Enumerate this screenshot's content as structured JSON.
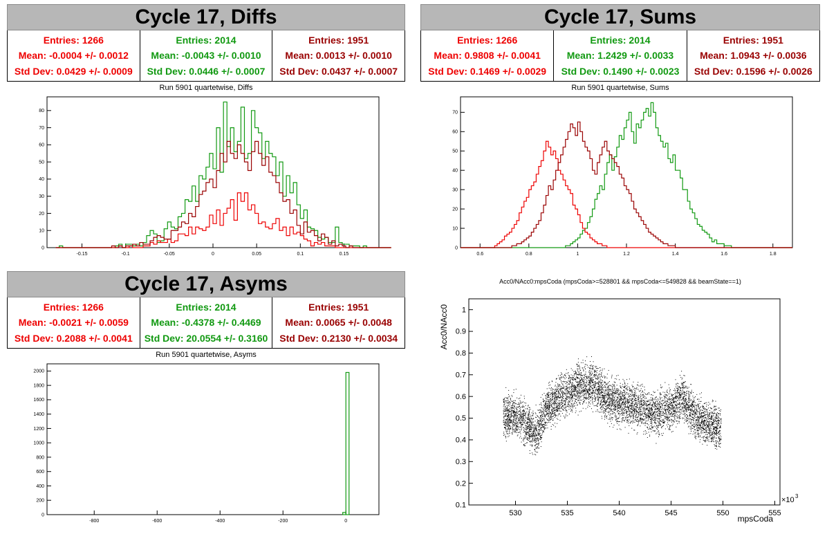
{
  "colors": {
    "red": "#ee0000",
    "green": "#119911",
    "darkred": "#990000"
  },
  "panels": [
    {
      "title": "Cycle 17, Diffs",
      "stats": [
        {
          "entries": "Entries: 1266",
          "mean": "Mean: -0.0004 +/- 0.0012",
          "std": "Std Dev: 0.0429 +/- 0.0009",
          "color": "#ee0000"
        },
        {
          "entries": "Entries: 2014",
          "mean": "Mean: -0.0043 +/- 0.0010",
          "std": "Std Dev: 0.0446 +/- 0.0007",
          "color": "#119911"
        },
        {
          "entries": "Entries: 1951",
          "mean": "Mean: 0.0013 +/- 0.0010",
          "std": "Std Dev: 0.0437 +/- 0.0007",
          "color": "#990000"
        }
      ],
      "subtitle": "Run 5901 quartetwise, Diffs"
    },
    {
      "title": "Cycle 17, Sums",
      "stats": [
        {
          "entries": "Entries: 1266",
          "mean": "Mean: 0.9808 +/- 0.0041",
          "std": "Std Dev: 0.1469 +/- 0.0029",
          "color": "#ee0000"
        },
        {
          "entries": "Entries: 2014",
          "mean": "Mean: 1.2429 +/- 0.0033",
          "std": "Std Dev: 0.1490 +/- 0.0023",
          "color": "#119911"
        },
        {
          "entries": "Entries: 1951",
          "mean": "Mean: 1.0943 +/- 0.0036",
          "std": "Std Dev: 0.1596 +/- 0.0026",
          "color": "#990000"
        }
      ],
      "subtitle": "Run 5901 quartetwise, Sums"
    },
    {
      "title": "Cycle 17, Asyms",
      "stats": [
        {
          "entries": "Entries: 1266",
          "mean": "Mean: -0.0021 +/- 0.0059",
          "std": "Std Dev: 0.2088 +/- 0.0041",
          "color": "#ee0000"
        },
        {
          "entries": "Entries: 2014",
          "mean": "Mean: -0.4378 +/- 0.4469",
          "std": "Std Dev: 20.0554 +/- 0.3160",
          "color": "#119911"
        },
        {
          "entries": "Entries: 1951",
          "mean": "Mean: 0.0065 +/- 0.0048",
          "std": "Std Dev: 0.2130 +/- 0.0034",
          "color": "#990000"
        }
      ],
      "subtitle": "Run 5901 quartetwise, Asyms"
    }
  ],
  "chart_data": [
    {
      "type": "histogram",
      "title": "Run 5901 quartetwise, Diffs",
      "xlim": [
        -0.19,
        0.19
      ],
      "ylim": [
        0,
        88
      ],
      "xticks": [
        "-0.15",
        "-0.1",
        "-0.05",
        "0",
        "0.05",
        "0.1",
        "0.15"
      ],
      "xtick_values": [
        -0.15,
        -0.1,
        -0.05,
        0,
        0.05,
        0.1,
        0.15
      ],
      "yticks": [
        "0",
        "10",
        "20",
        "30",
        "40",
        "50",
        "60",
        "70",
        "80"
      ],
      "ytick_values": [
        0,
        10,
        20,
        30,
        40,
        50,
        60,
        70,
        80
      ],
      "x_start": -0.18,
      "bin_width": 0.004,
      "series": [
        {
          "color": "#119911",
          "counts": [
            0,
            1,
            0,
            0,
            0,
            0,
            0,
            0,
            0,
            0,
            0,
            0,
            0,
            0,
            0,
            0,
            0,
            1,
            2,
            0,
            2,
            2,
            1,
            2,
            1,
            3,
            7,
            10,
            8,
            3,
            4,
            11,
            15,
            12,
            11,
            18,
            20,
            28,
            27,
            36,
            27,
            42,
            40,
            47,
            55,
            46,
            70,
            44,
            85,
            59,
            70,
            56,
            62,
            82,
            52,
            55,
            80,
            70,
            67,
            52,
            62,
            55,
            53,
            42,
            50,
            30,
            42,
            32,
            38,
            25,
            17,
            22,
            12,
            11,
            10,
            6,
            5,
            6,
            3,
            3,
            12,
            3,
            2,
            2,
            1,
            1,
            1,
            0,
            1,
            0,
            0,
            0,
            0,
            0,
            0,
            0
          ]
        },
        {
          "color": "#ee0000",
          "counts": [
            0,
            0,
            0,
            0,
            0,
            0,
            0,
            0,
            0,
            0,
            0,
            0,
            0,
            0,
            0,
            0,
            0,
            0,
            1,
            0,
            0,
            1,
            0,
            0,
            0,
            1,
            1,
            3,
            2,
            4,
            3,
            3,
            5,
            3,
            4,
            8,
            8,
            7,
            12,
            8,
            12,
            11,
            10,
            12,
            19,
            14,
            22,
            13,
            20,
            23,
            28,
            16,
            32,
            27,
            32,
            22,
            25,
            20,
            14,
            15,
            12,
            11,
            14,
            17,
            10,
            12,
            7,
            12,
            8,
            9,
            7,
            5,
            4,
            1,
            3,
            2,
            3,
            1,
            1,
            1,
            0,
            0,
            0,
            0,
            0,
            0,
            0,
            0,
            0,
            0,
            0,
            0,
            0,
            0,
            0,
            0
          ]
        },
        {
          "color": "#990000",
          "counts": [
            0,
            0,
            0,
            0,
            0,
            0,
            0,
            0,
            0,
            0,
            0,
            0,
            0,
            0,
            0,
            0,
            1,
            0,
            1,
            0,
            1,
            1,
            2,
            1,
            3,
            2,
            2,
            4,
            6,
            7,
            6,
            5,
            5,
            10,
            10,
            12,
            15,
            14,
            20,
            18,
            24,
            31,
            33,
            38,
            40,
            35,
            45,
            55,
            50,
            62,
            55,
            52,
            60,
            55,
            50,
            45,
            56,
            62,
            55,
            48,
            53,
            44,
            42,
            38,
            32,
            27,
            28,
            20,
            22,
            13,
            8,
            15,
            9,
            10,
            7,
            4,
            8,
            6,
            2,
            4,
            1,
            2,
            1,
            0,
            1,
            0,
            0,
            0,
            0,
            0,
            0,
            0,
            0,
            0,
            0,
            0
          ]
        }
      ]
    },
    {
      "type": "histogram",
      "title": "Run 5901 quartetwise, Sums",
      "xlim": [
        0.52,
        1.88
      ],
      "ylim": [
        0,
        78
      ],
      "xticks": [
        "0.6",
        "0.8",
        "1",
        "1.2",
        "1.4",
        "1.6",
        "1.8"
      ],
      "xtick_values": [
        0.6,
        0.8,
        1.0,
        1.2,
        1.4,
        1.6,
        1.8
      ],
      "yticks": [
        "0",
        "10",
        "20",
        "30",
        "40",
        "50",
        "60",
        "70"
      ],
      "ytick_values": [
        0,
        10,
        20,
        30,
        40,
        50,
        60,
        70
      ],
      "x_start": 0.52,
      "bin_width": 0.01,
      "series": [
        {
          "color": "#119911",
          "counts": [
            0,
            0,
            0,
            0,
            0,
            0,
            0,
            0,
            0,
            0,
            0,
            0,
            0,
            0,
            0,
            0,
            0,
            0,
            0,
            0,
            0,
            0,
            0,
            0,
            0,
            0,
            0,
            0,
            0,
            0,
            0,
            0,
            0,
            0,
            0,
            0,
            0,
            0,
            0,
            0,
            0,
            0,
            0,
            1,
            1,
            2,
            3,
            4,
            5,
            7,
            9,
            10,
            13,
            16,
            20,
            25,
            28,
            32,
            30,
            38,
            44,
            48,
            40,
            47,
            52,
            58,
            56,
            62,
            66,
            70,
            60,
            54,
            64,
            62,
            66,
            70,
            72,
            68,
            75,
            70,
            62,
            58,
            55,
            52,
            54,
            46,
            44,
            48,
            40,
            40,
            36,
            30,
            30,
            24,
            20,
            18,
            15,
            12,
            11,
            9,
            8,
            7,
            5,
            3,
            4,
            2,
            2,
            2,
            1,
            1,
            1,
            0,
            0,
            0,
            0,
            0,
            0,
            0,
            0,
            0,
            0,
            0,
            0,
            0,
            0,
            0,
            0,
            0,
            0,
            0,
            0,
            0,
            0,
            0,
            0,
            0
          ]
        },
        {
          "color": "#ee0000",
          "counts": [
            0,
            0,
            0,
            0,
            0,
            0,
            0,
            0,
            0,
            0,
            0,
            0,
            0,
            0,
            1,
            2,
            3,
            4,
            6,
            7,
            8,
            10,
            12,
            14,
            18,
            21,
            24,
            26,
            30,
            32,
            34,
            38,
            42,
            45,
            50,
            55,
            52,
            48,
            50,
            46,
            40,
            38,
            35,
            32,
            30,
            28,
            22,
            20,
            17,
            13,
            10,
            8,
            7,
            5,
            4,
            3,
            2,
            2,
            1,
            1,
            0,
            0,
            0,
            0,
            0,
            0,
            0,
            0,
            0,
            0,
            0,
            0,
            0,
            0,
            0,
            0,
            0,
            0,
            0,
            0,
            0,
            0,
            0,
            0,
            0,
            0,
            0,
            0,
            0,
            0,
            0,
            0,
            0,
            0,
            0,
            0,
            0,
            0,
            0,
            0,
            0,
            0,
            0,
            0,
            0,
            0,
            0,
            0,
            0,
            0,
            0,
            0,
            0,
            0,
            0,
            0,
            0,
            0,
            0,
            0,
            0,
            0,
            0,
            0,
            0,
            0,
            0,
            0,
            0,
            0,
            0,
            0,
            0,
            0,
            0,
            0
          ]
        },
        {
          "color": "#990000",
          "counts": [
            0,
            0,
            0,
            0,
            0,
            0,
            0,
            0,
            0,
            0,
            0,
            0,
            0,
            0,
            0,
            0,
            0,
            0,
            0,
            0,
            0,
            1,
            1,
            2,
            2,
            3,
            4,
            5,
            6,
            8,
            10,
            12,
            14,
            18,
            22,
            27,
            32,
            30,
            35,
            40,
            44,
            48,
            52,
            56,
            60,
            64,
            62,
            58,
            65,
            60,
            55,
            52,
            50,
            46,
            40,
            38,
            44,
            48,
            52,
            55,
            50,
            48,
            46,
            44,
            42,
            38,
            36,
            32,
            30,
            28,
            24,
            20,
            18,
            16,
            14,
            12,
            10,
            8,
            7,
            6,
            5,
            4,
            3,
            2,
            2,
            1,
            1,
            1,
            0,
            0,
            0,
            0,
            0,
            0,
            0,
            0,
            0,
            0,
            0,
            0,
            0,
            0,
            0,
            0,
            0,
            0,
            0,
            0,
            0,
            0,
            0,
            0,
            0,
            0,
            0,
            0,
            0,
            0,
            0,
            0,
            0,
            0,
            0,
            0,
            0,
            0,
            0,
            0,
            0,
            0,
            0,
            0,
            0,
            0,
            0,
            0
          ]
        }
      ]
    },
    {
      "type": "histogram",
      "title": "Run 5901 quartetwise, Asyms",
      "xlim": [
        -950,
        105
      ],
      "ylim": [
        0,
        2100
      ],
      "xticks": [
        "-800",
        "-600",
        "-400",
        "-200",
        "0"
      ],
      "xtick_values": [
        -800,
        -600,
        -400,
        -200,
        0
      ],
      "yticks": [
        "0",
        "200",
        "400",
        "600",
        "800",
        "1000",
        "1200",
        "1400",
        "1600",
        "1800",
        "2000"
      ],
      "ytick_values": [
        0,
        200,
        400,
        600,
        800,
        1000,
        1200,
        1400,
        1600,
        1800,
        2000
      ],
      "series": [
        {
          "color": "#119911",
          "bars": [
            {
              "x0": 0,
              "x1": 10,
              "count": 1980
            },
            {
              "x0": -10,
              "x1": 0,
              "count": 30
            }
          ]
        }
      ]
    },
    {
      "type": "scatter",
      "title": "Acc0/NAcc0:mpsCoda (mpsCoda>=528801 && mpsCoda<=549828 && beamState==1)",
      "xlabel": "mpsCoda",
      "ylabel": "Acc0/NAcc0",
      "x_exponent": "×10",
      "x_exponent_power": "3",
      "xlim": [
        525.5,
        555.5
      ],
      "ylim": [
        0.1,
        1.05
      ],
      "xticks": [
        "530",
        "535",
        "540",
        "545",
        "550",
        "555"
      ],
      "xtick_values": [
        530,
        535,
        540,
        545,
        550,
        555
      ],
      "yticks": [
        "0.1",
        "0.2",
        "0.3",
        "0.4",
        "0.5",
        "0.6",
        "0.7",
        "0.8",
        "0.9",
        "1"
      ],
      "ytick_values": [
        0.1,
        0.2,
        0.3,
        0.4,
        0.5,
        0.6,
        0.7,
        0.8,
        0.9,
        1.0
      ],
      "x_range": [
        528.8,
        549.8
      ],
      "trend_x": [
        528.8,
        530.5,
        532.0,
        533.0,
        534.5,
        536.0,
        537.5,
        539.0,
        540.5,
        542.0,
        543.5,
        545.0,
        546.0,
        547.5,
        548.5,
        549.8
      ],
      "trend_y": [
        0.52,
        0.5,
        0.42,
        0.55,
        0.6,
        0.65,
        0.66,
        0.58,
        0.57,
        0.55,
        0.52,
        0.55,
        0.6,
        0.5,
        0.48,
        0.45
      ],
      "spread": 0.08,
      "n_points": 6000,
      "color": "#000000"
    }
  ]
}
